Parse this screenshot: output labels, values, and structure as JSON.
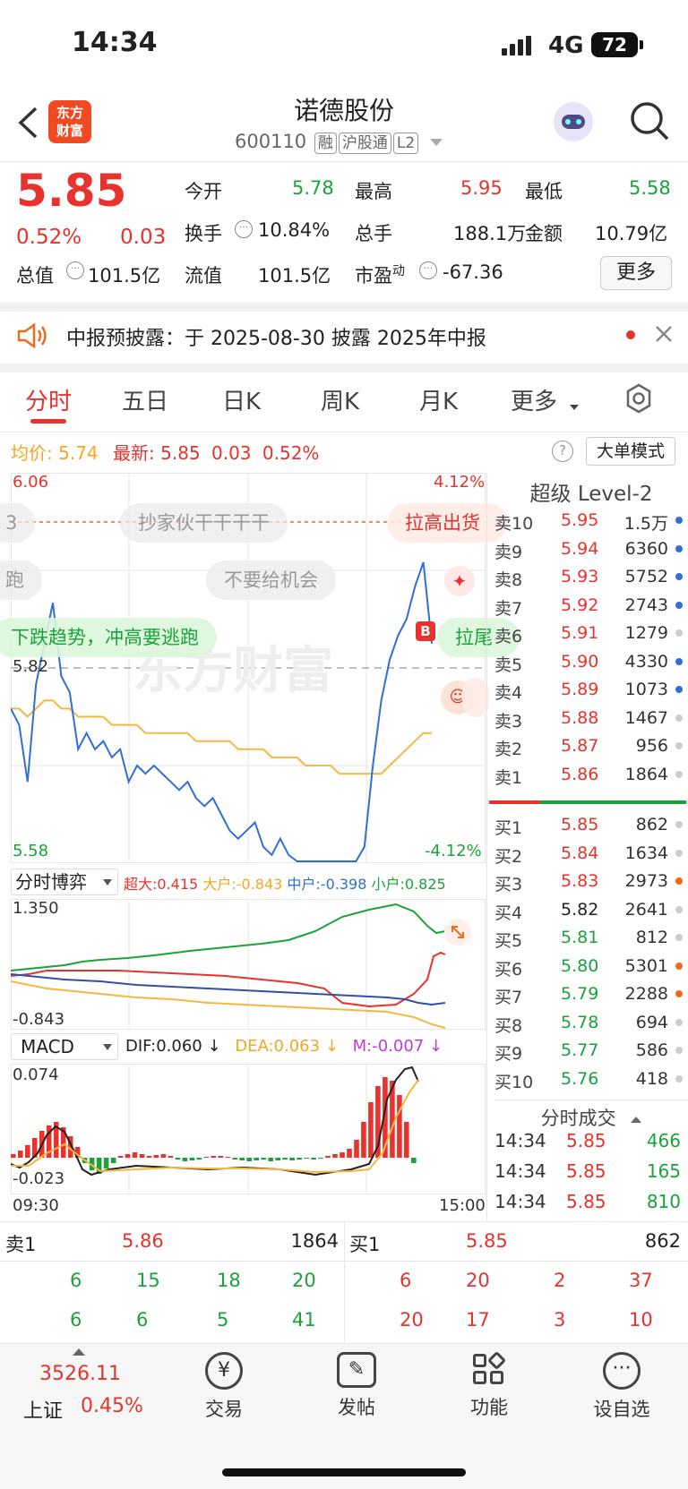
{
  "status": {
    "time": "14:34",
    "network": "4G",
    "battery": "72"
  },
  "header": {
    "logo_line1": "东方",
    "logo_line2": "财富",
    "title": "诺德股份",
    "code": "600110",
    "tags": [
      "融",
      "沪股通",
      "L2"
    ]
  },
  "quote": {
    "price": "5.85",
    "change_pct": "0.52%",
    "change": "0.03",
    "open_label": "今开",
    "open": "5.78",
    "high_label": "最高",
    "high": "5.95",
    "low_label": "最低",
    "low": "5.58",
    "turnover_label": "换手",
    "turnover": "10.84%",
    "volume_label": "总手",
    "volume": "188.1万",
    "amount_label": "金额",
    "amount": "10.79亿",
    "mktcap_label": "总值",
    "mktcap": "101.5亿",
    "float_label": "流值",
    "float": "101.5亿",
    "pe_label": "市盈",
    "pe_sup": "动",
    "pe": "-67.36",
    "more": "更多"
  },
  "notice": {
    "text": "中报预披露：于 2025-08-30 披露 2025年中报"
  },
  "tabs": [
    "分时",
    "五日",
    "日K",
    "周K",
    "月K",
    "更多"
  ],
  "summary": {
    "avg_label": "均价:",
    "avg": "5.74",
    "latest_label": "最新:",
    "latest": "5.85",
    "chg": "0.03",
    "pct": "0.52%",
    "mode": "大单模式"
  },
  "chart": {
    "y_top": "6.06",
    "y_mid": "5.82",
    "y_bot": "5.58",
    "pct_top": "4.12%",
    "pct_bot": "-4.12%",
    "watermark": "东方财富",
    "bubbles": [
      "抄家伙干干干干",
      "拉高出货",
      "不要给机会",
      "下跌趋势，冲高要逃跑",
      "拉尾",
      "跑",
      "3"
    ],
    "marker": "B",
    "time_start": "09:30",
    "time_end": "15:00"
  },
  "chart_data": {
    "type": "line",
    "series": [
      {
        "name": "",
        "values": [
          5.77,
          5.75,
          5.68,
          5.8,
          5.85,
          5.9,
          5.81,
          5.79,
          5.72,
          5.74,
          5.72,
          5.73,
          5.71,
          5.72,
          5.68,
          5.7,
          5.69,
          5.7,
          5.69,
          5.68,
          5.67,
          5.68,
          5.66,
          5.65,
          5.66,
          5.64,
          5.62,
          5.61,
          5.62,
          5.63,
          5.6,
          5.59,
          5.61,
          5.59,
          5.58,
          5.58,
          5.58,
          5.57,
          5.58,
          5.57,
          5.57,
          5.58,
          5.6,
          5.7,
          5.78,
          5.83,
          5.86,
          5.88,
          5.92,
          5.95,
          5.85
        ]
      },
      {
        "name": "",
        "values": [
          5.77,
          5.77,
          5.76,
          5.77,
          5.78,
          5.78,
          5.77,
          5.77,
          5.76,
          5.76,
          5.76,
          5.76,
          5.75,
          5.75,
          5.75,
          5.75,
          5.74,
          5.74,
          5.74,
          5.74,
          5.74,
          5.74,
          5.73,
          5.73,
          5.73,
          5.73,
          5.73,
          5.72,
          5.72,
          5.72,
          5.72,
          5.71,
          5.71,
          5.71,
          5.71,
          5.7,
          5.7,
          5.7,
          5.7,
          5.69,
          5.69,
          5.69,
          5.69,
          5.69,
          5.69,
          5.7,
          5.71,
          5.72,
          5.73,
          5.74,
          5.74
        ]
      }
    ],
    "ylim": [
      5.58,
      6.06
    ]
  },
  "game": {
    "label": "分时博弈",
    "items": [
      {
        "name": "超大",
        "value": "0.415"
      },
      {
        "name": "大户",
        "value": "-0.843"
      },
      {
        "name": "中户",
        "value": "-0.398"
      },
      {
        "name": "小户",
        "value": "0.825"
      }
    ],
    "y_top": "1.350",
    "y_bot": "-0.843"
  },
  "macd": {
    "label": "MACD",
    "dif": "DIF:0.060 ↓",
    "dea": "DEA:0.063 ↓",
    "m": "M:-0.007 ↓",
    "y_top": "0.074",
    "y_bot": "-0.023"
  },
  "orderbook": {
    "title": "超级 Level-2",
    "asks": [
      {
        "label": "卖10",
        "price": "5.95",
        "vol": "1.5万",
        "dot": "#2f6fd6"
      },
      {
        "label": "卖9",
        "price": "5.94",
        "vol": "6360",
        "dot": "#2f6fd6"
      },
      {
        "label": "卖8",
        "price": "5.93",
        "vol": "5752",
        "dot": "#2f6fd6"
      },
      {
        "label": "卖7",
        "price": "5.92",
        "vol": "2743",
        "dot": "#2f6fd6"
      },
      {
        "label": "卖6",
        "price": "5.91",
        "vol": "1279",
        "dot": "#cccccc"
      },
      {
        "label": "卖5",
        "price": "5.90",
        "vol": "4330",
        "dot": "#2f6fd6"
      },
      {
        "label": "卖4",
        "price": "5.89",
        "vol": "1073",
        "dot": "#2f6fd6"
      },
      {
        "label": "卖3",
        "price": "5.88",
        "vol": "1467",
        "dot": "#cccccc"
      },
      {
        "label": "卖2",
        "price": "5.87",
        "vol": "956",
        "dot": "#cccccc"
      },
      {
        "label": "卖1",
        "price": "5.86",
        "vol": "1864",
        "dot": "#cccccc"
      }
    ],
    "bids": [
      {
        "label": "买1",
        "price": "5.85",
        "vol": "862",
        "dot": "#cccccc",
        "color": "#e8322d"
      },
      {
        "label": "买2",
        "price": "5.84",
        "vol": "1634",
        "dot": "#cccccc",
        "color": "#e8322d"
      },
      {
        "label": "买3",
        "price": "5.83",
        "vol": "2973",
        "dot": "#f06a1c",
        "color": "#e8322d"
      },
      {
        "label": "买4",
        "price": "5.82",
        "vol": "2641",
        "dot": "#cccccc",
        "color": "#222222"
      },
      {
        "label": "买5",
        "price": "5.81",
        "vol": "812",
        "dot": "#cccccc",
        "color": "#1aa33a"
      },
      {
        "label": "买6",
        "price": "5.80",
        "vol": "5301",
        "dot": "#f06a1c",
        "color": "#1aa33a"
      },
      {
        "label": "买7",
        "price": "5.79",
        "vol": "2288",
        "dot": "#f06a1c",
        "color": "#1aa33a"
      },
      {
        "label": "买8",
        "price": "5.78",
        "vol": "694",
        "dot": "#cccccc",
        "color": "#1aa33a"
      },
      {
        "label": "买9",
        "price": "5.77",
        "vol": "586",
        "dot": "#cccccc",
        "color": "#1aa33a"
      },
      {
        "label": "买10",
        "price": "5.76",
        "vol": "418",
        "dot": "#cccccc",
        "color": "#1aa33a"
      }
    ],
    "ticks_title": "分时成交",
    "ticks": [
      {
        "time": "14:34",
        "price": "5.85",
        "vol": "466"
      },
      {
        "time": "14:34",
        "price": "5.85",
        "vol": "165"
      },
      {
        "time": "14:34",
        "price": "5.85",
        "vol": "810"
      }
    ]
  },
  "queue": {
    "sell_label": "卖1",
    "sell_price": "5.86",
    "sell_vol": "1864",
    "buy_label": "买1",
    "buy_price": "5.85",
    "buy_vol": "862",
    "sell_rows": [
      [
        "6",
        "15",
        "18",
        "20"
      ],
      [
        "6",
        "6",
        "5",
        "41"
      ]
    ],
    "buy_rows": [
      [
        "6",
        "20",
        "2",
        "37"
      ],
      [
        "20",
        "17",
        "3",
        "10"
      ]
    ]
  },
  "footer": {
    "index_value": "3526.11",
    "index_name": "上证",
    "index_pct": "0.45%",
    "items": [
      "交易",
      "发帖",
      "功能",
      "设自选"
    ]
  }
}
